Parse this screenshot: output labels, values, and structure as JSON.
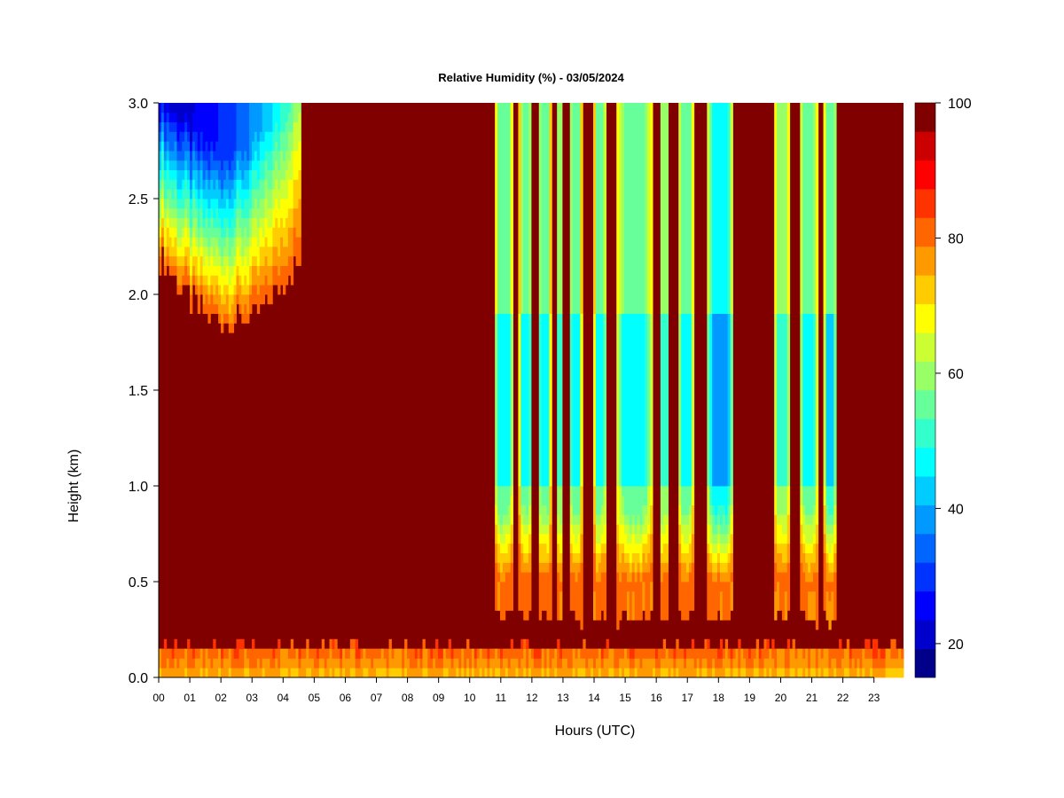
{
  "chart_data": {
    "type": "heatmap",
    "title": "Relative Humidity (%) - 03/05/2024",
    "xlabel": "Hours (UTC)",
    "ylabel": "Height (km)",
    "x_ticks": [
      "00",
      "01",
      "02",
      "03",
      "04",
      "05",
      "06",
      "07",
      "08",
      "09",
      "10",
      "11",
      "12",
      "13",
      "14",
      "15",
      "16",
      "17",
      "18",
      "19",
      "20",
      "21",
      "22",
      "23"
    ],
    "x_range": [
      0,
      23.95
    ],
    "y_ticks": [
      "0.0",
      "0.5",
      "1.0",
      "1.5",
      "2.0",
      "2.5",
      "3.0"
    ],
    "y_range": [
      0,
      3
    ],
    "colorbar": {
      "label_ticks": [
        "20",
        "40",
        "60",
        "80",
        "100"
      ],
      "range": [
        15,
        100
      ],
      "step": 5,
      "colors": [
        "#00008B",
        "#0000CD",
        "#0000FF",
        "#0033FF",
        "#0066FF",
        "#0099FF",
        "#00CCFF",
        "#00FFFF",
        "#33FFCC",
        "#66FF99",
        "#99FF66",
        "#CCFF33",
        "#FFFF00",
        "#FFCC00",
        "#FF9900",
        "#FF6600",
        "#FF3300",
        "#FF0000",
        "#CC0000",
        "#800000"
      ],
      "scale": "linear"
    },
    "background_value": 100,
    "regions": [
      {
        "id": "morning-dry-layer",
        "hours": [
          0,
          4.6
        ],
        "value_top": 22,
        "value_base": 95,
        "base_km": [
          1.7,
          2.2
        ]
      },
      {
        "id": "surface-layer",
        "hours": [
          0,
          23.95
        ],
        "heights_km": [
          0,
          0.15
        ],
        "values": [
          80,
          90
        ]
      },
      {
        "id": "dry-band-a",
        "hours": [
          10.8,
          11.4
        ],
        "value_min": 50
      },
      {
        "id": "dry-band-b",
        "hours": [
          11.6,
          12.0
        ],
        "value_min": 52
      },
      {
        "id": "dry-band-c",
        "hours": [
          12.2,
          12.6
        ],
        "value_min": 50
      },
      {
        "id": "dry-band-d",
        "hours": [
          12.8,
          13.0
        ],
        "value_min": 55
      },
      {
        "id": "dry-band-e",
        "hours": [
          13.2,
          13.6
        ],
        "value_min": 50
      },
      {
        "id": "dry-band-f",
        "hours": [
          14.0,
          14.4
        ],
        "value_min": 52
      },
      {
        "id": "dry-band-g",
        "hours": [
          14.7,
          15.9
        ],
        "value_min": 50
      },
      {
        "id": "dry-band-h",
        "hours": [
          16.1,
          16.4
        ],
        "value_min": 55
      },
      {
        "id": "dry-band-i",
        "hours": [
          16.7,
          17.2
        ],
        "value_min": 52
      },
      {
        "id": "dry-band-j",
        "hours": [
          17.6,
          18.5
        ],
        "value_min": 42
      },
      {
        "id": "dry-band-k",
        "hours": [
          19.8,
          20.3
        ],
        "value_min": 55
      },
      {
        "id": "dry-band-l",
        "hours": [
          20.6,
          21.2
        ],
        "value_min": 52
      },
      {
        "id": "dry-band-m",
        "hours": [
          21.4,
          21.8
        ],
        "value_min": 48
      }
    ]
  }
}
